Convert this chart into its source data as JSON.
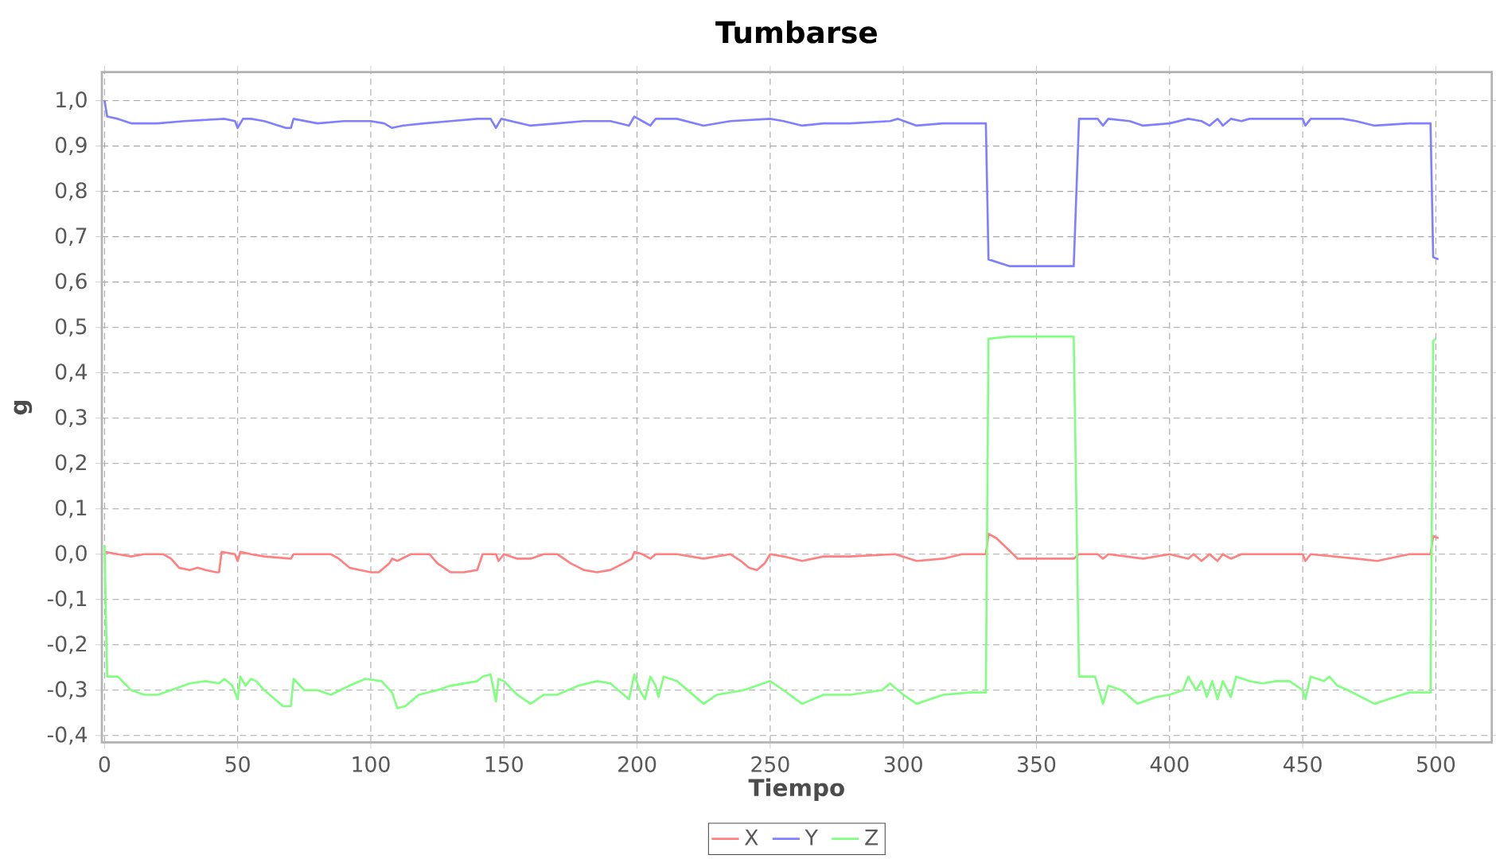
{
  "chart_data": {
    "type": "line",
    "title": "Tumbarse",
    "xlabel": "Tiempo",
    "ylabel": "g",
    "xlim": [
      -1,
      521
    ],
    "ylim": [
      -0.415,
      1.063
    ],
    "xticks": [
      0,
      50,
      100,
      150,
      200,
      250,
      300,
      350,
      400,
      450,
      500
    ],
    "yticks": [
      {
        "value": -0.4,
        "label": "-0,4"
      },
      {
        "value": -0.3,
        "label": "-0,3"
      },
      {
        "value": -0.2,
        "label": "-0,2"
      },
      {
        "value": -0.1,
        "label": "-0,1"
      },
      {
        "value": 0.0,
        "label": "0,0"
      },
      {
        "value": 0.1,
        "label": "0,1"
      },
      {
        "value": 0.2,
        "label": "0,2"
      },
      {
        "value": 0.3,
        "label": "0,3"
      },
      {
        "value": 0.4,
        "label": "0,4"
      },
      {
        "value": 0.5,
        "label": "0,5"
      },
      {
        "value": 0.6,
        "label": "0,6"
      },
      {
        "value": 0.7,
        "label": "0,7"
      },
      {
        "value": 0.8,
        "label": "0,8"
      },
      {
        "value": 0.9,
        "label": "0,9"
      },
      {
        "value": 1.0,
        "label": "1,0"
      }
    ],
    "grid": true,
    "legend": "bottom",
    "marker": "none",
    "line_style": "solid",
    "series": [
      {
        "name": "X",
        "color": "#ff8080",
        "x": [
          0,
          5,
          10,
          15,
          22,
          25,
          28,
          32,
          35,
          38,
          42,
          43,
          44,
          49,
          50,
          51,
          55,
          60,
          70,
          71,
          80,
          85,
          88,
          92,
          96,
          100,
          103,
          107,
          108,
          110,
          115,
          122,
          125,
          130,
          135,
          140,
          142,
          147,
          148,
          150,
          155,
          160,
          165,
          170,
          175,
          180,
          185,
          190,
          195,
          198,
          199,
          202,
          205,
          207,
          215,
          225,
          235,
          239,
          242,
          245,
          248,
          250,
          255,
          262,
          270,
          280,
          297,
          305,
          315,
          322,
          331,
          332,
          335,
          343,
          364,
          366,
          373,
          375,
          377,
          390,
          400,
          407,
          409,
          412,
          415,
          418,
          420,
          423,
          427,
          440,
          450,
          451,
          453,
          470,
          478,
          490,
          498,
          499,
          501
        ],
        "values": [
          0.005,
          0,
          -0.005,
          0,
          0,
          -0.01,
          -0.03,
          -0.035,
          -0.03,
          -0.035,
          -0.04,
          -0.04,
          0.005,
          0,
          -0.015,
          0.005,
          0,
          -0.005,
          -0.01,
          0,
          0,
          0,
          -0.01,
          -0.03,
          -0.035,
          -0.04,
          -0.04,
          -0.02,
          -0.01,
          -0.015,
          0,
          0,
          -0.02,
          -0.04,
          -0.04,
          -0.035,
          0,
          0,
          -0.015,
          0,
          -0.01,
          -0.01,
          0,
          0,
          -0.02,
          -0.035,
          -0.04,
          -0.035,
          -0.02,
          -0.01,
          0.005,
          0,
          -0.01,
          0,
          0,
          -0.01,
          0,
          -0.015,
          -0.03,
          -0.035,
          -0.02,
          0,
          -0.005,
          -0.015,
          -0.005,
          -0.005,
          0,
          -0.015,
          -0.01,
          0,
          0,
          0.045,
          0.035,
          -0.01,
          -0.01,
          0,
          0,
          -0.01,
          0,
          -0.01,
          0,
          -0.01,
          0,
          -0.015,
          0,
          -0.015,
          0,
          -0.01,
          0,
          0,
          0,
          -0.015,
          0,
          -0.01,
          -0.015,
          0,
          0,
          0.04,
          0.035
        ]
      },
      {
        "name": "Y",
        "color": "#8080ff",
        "x": [
          0,
          1,
          5,
          10,
          20,
          30,
          45,
          49,
          50,
          52,
          55,
          60,
          68,
          70,
          71,
          80,
          90,
          100,
          105,
          108,
          112,
          120,
          130,
          140,
          145,
          147,
          149,
          160,
          170,
          180,
          190,
          197,
          199,
          202,
          205,
          207,
          215,
          225,
          235,
          250,
          255,
          262,
          270,
          280,
          295,
          298,
          305,
          315,
          331,
          332,
          340,
          364,
          366,
          373,
          375,
          377,
          385,
          390,
          400,
          407,
          412,
          415,
          418,
          420,
          423,
          427,
          430,
          450,
          451,
          453,
          465,
          470,
          477,
          490,
          498,
          499,
          501
        ],
        "values": [
          1.0,
          0.965,
          0.96,
          0.95,
          0.95,
          0.955,
          0.96,
          0.955,
          0.94,
          0.96,
          0.96,
          0.955,
          0.94,
          0.94,
          0.96,
          0.95,
          0.955,
          0.955,
          0.95,
          0.94,
          0.945,
          0.95,
          0.955,
          0.96,
          0.96,
          0.94,
          0.96,
          0.945,
          0.95,
          0.955,
          0.955,
          0.945,
          0.965,
          0.955,
          0.945,
          0.96,
          0.96,
          0.945,
          0.955,
          0.96,
          0.955,
          0.945,
          0.95,
          0.95,
          0.955,
          0.96,
          0.945,
          0.95,
          0.95,
          0.65,
          0.635,
          0.635,
          0.96,
          0.96,
          0.945,
          0.96,
          0.955,
          0.945,
          0.95,
          0.96,
          0.955,
          0.945,
          0.96,
          0.945,
          0.96,
          0.955,
          0.96,
          0.96,
          0.945,
          0.96,
          0.96,
          0.955,
          0.945,
          0.95,
          0.95,
          0.655,
          0.65
        ]
      },
      {
        "name": "Z",
        "color": "#80ff80",
        "x": [
          0,
          1,
          5,
          10,
          15,
          20,
          25,
          32,
          38,
          43,
          45,
          48,
          50,
          51,
          53,
          55,
          57,
          60,
          67,
          70,
          71,
          75,
          80,
          85,
          92,
          98,
          104,
          108,
          110,
          113,
          118,
          125,
          130,
          140,
          142,
          145,
          147,
          148,
          150,
          155,
          160,
          165,
          170,
          178,
          185,
          190,
          195,
          197,
          199,
          201,
          203,
          205,
          207,
          208,
          210,
          215,
          220,
          225,
          230,
          240,
          245,
          250,
          255,
          262,
          270,
          280,
          292,
          295,
          300,
          305,
          315,
          325,
          331,
          332,
          340,
          364,
          366,
          372,
          375,
          377,
          382,
          388,
          395,
          400,
          405,
          407,
          410,
          412,
          414,
          416,
          418,
          420,
          423,
          425,
          430,
          435,
          440,
          445,
          450,
          451,
          453,
          458,
          460,
          463,
          467,
          477,
          482,
          490,
          498,
          499,
          500
        ],
        "values": [
          0.02,
          -0.27,
          -0.27,
          -0.3,
          -0.31,
          -0.31,
          -0.3,
          -0.285,
          -0.28,
          -0.285,
          -0.275,
          -0.29,
          -0.32,
          -0.27,
          -0.29,
          -0.275,
          -0.28,
          -0.3,
          -0.335,
          -0.335,
          -0.275,
          -0.3,
          -0.3,
          -0.31,
          -0.29,
          -0.275,
          -0.28,
          -0.305,
          -0.34,
          -0.335,
          -0.31,
          -0.3,
          -0.29,
          -0.28,
          -0.27,
          -0.265,
          -0.325,
          -0.275,
          -0.28,
          -0.31,
          -0.33,
          -0.31,
          -0.31,
          -0.29,
          -0.28,
          -0.285,
          -0.31,
          -0.32,
          -0.265,
          -0.3,
          -0.32,
          -0.27,
          -0.29,
          -0.315,
          -0.27,
          -0.28,
          -0.305,
          -0.33,
          -0.31,
          -0.3,
          -0.29,
          -0.28,
          -0.3,
          -0.33,
          -0.31,
          -0.31,
          -0.3,
          -0.285,
          -0.31,
          -0.33,
          -0.31,
          -0.305,
          -0.305,
          0.475,
          0.48,
          0.48,
          -0.27,
          -0.27,
          -0.33,
          -0.29,
          -0.3,
          -0.33,
          -0.315,
          -0.31,
          -0.3,
          -0.27,
          -0.3,
          -0.28,
          -0.315,
          -0.28,
          -0.32,
          -0.28,
          -0.315,
          -0.27,
          -0.28,
          -0.285,
          -0.28,
          -0.28,
          -0.3,
          -0.32,
          -0.27,
          -0.28,
          -0.27,
          -0.29,
          -0.3,
          -0.33,
          -0.32,
          -0.305,
          -0.305,
          0.47,
          0.475
        ]
      }
    ]
  }
}
